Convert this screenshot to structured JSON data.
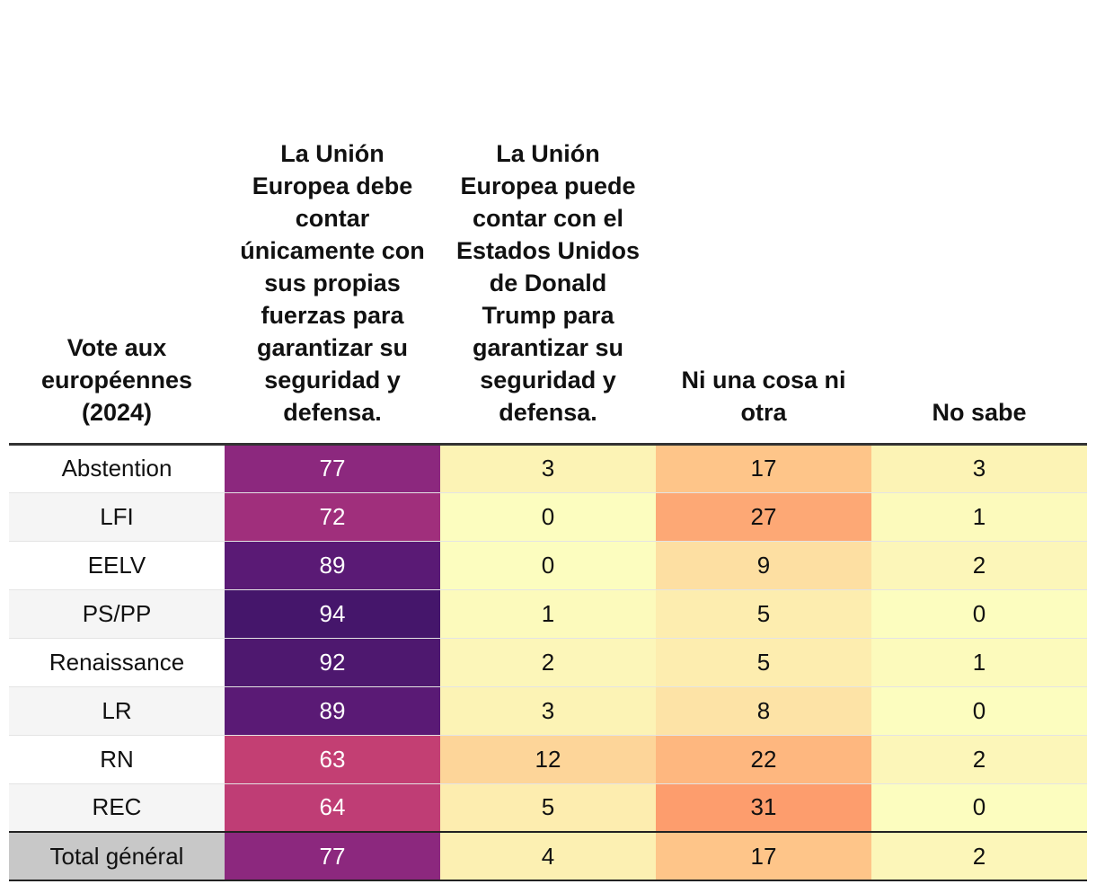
{
  "chart_data": {
    "type": "table",
    "title": "",
    "row_header": "Vote aux européennes (2024)",
    "columns": [
      "La Unión Europea debe contar únicamente con sus propias fuerzas para garantizar su seguridad y defensa.",
      "La Unión Europea puede contar con el Estados Unidos de Donald Trump para garantizar su seguridad y defensa.",
      "Ni una cosa ni otra",
      "No sabe"
    ],
    "rows": [
      {
        "label": "Abstention",
        "values": [
          77,
          3,
          17,
          3
        ]
      },
      {
        "label": "LFI",
        "values": [
          72,
          0,
          27,
          1
        ]
      },
      {
        "label": "EELV",
        "values": [
          89,
          0,
          9,
          2
        ]
      },
      {
        "label": "PS/PP",
        "values": [
          94,
          1,
          5,
          0
        ]
      },
      {
        "label": "Renaissance",
        "values": [
          92,
          2,
          5,
          1
        ]
      },
      {
        "label": "LR",
        "values": [
          89,
          3,
          8,
          0
        ]
      },
      {
        "label": "RN",
        "values": [
          63,
          12,
          22,
          2
        ]
      },
      {
        "label": "REC",
        "values": [
          64,
          5,
          31,
          0
        ]
      }
    ],
    "total": {
      "label": "Total général",
      "values": [
        77,
        4,
        17,
        2
      ]
    },
    "color_scale": {
      "name": "magma",
      "stops": [
        "#fcfdbf",
        "#fec68a",
        "#fd9668",
        "#f1605d",
        "#b63679",
        "#721f81",
        "#2c115f"
      ]
    }
  }
}
